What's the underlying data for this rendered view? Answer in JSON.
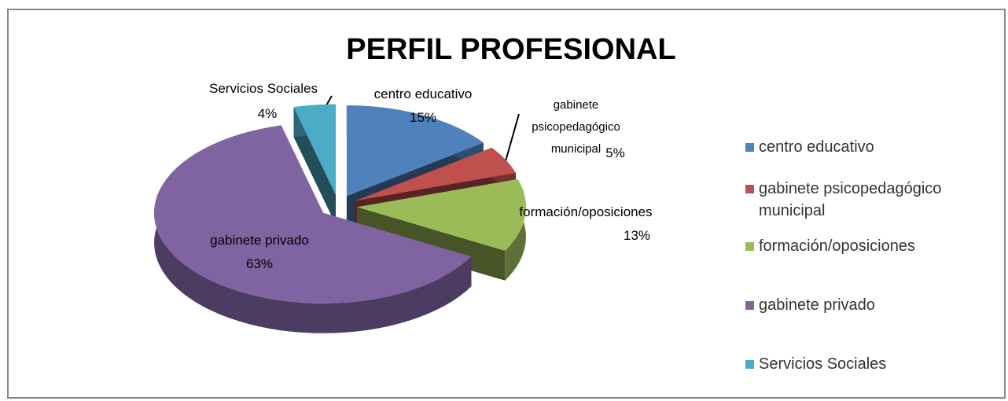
{
  "chart_data": {
    "type": "pie",
    "title": "PERFIL PROFESIONAL",
    "categories": [
      "centro educativo",
      "gabinete psicopedagógico municipal",
      "formación/oposiciones",
      "gabinete privado",
      "Servicios Sociales"
    ],
    "values": [
      15,
      5,
      13,
      63,
      4
    ],
    "value_labels": [
      "15%",
      "5%",
      "13%",
      "63%",
      "4%"
    ],
    "colors": [
      "#4f81bd",
      "#c0504d",
      "#9bbb59",
      "#8064a2",
      "#4bacc6"
    ],
    "legend": "right"
  }
}
